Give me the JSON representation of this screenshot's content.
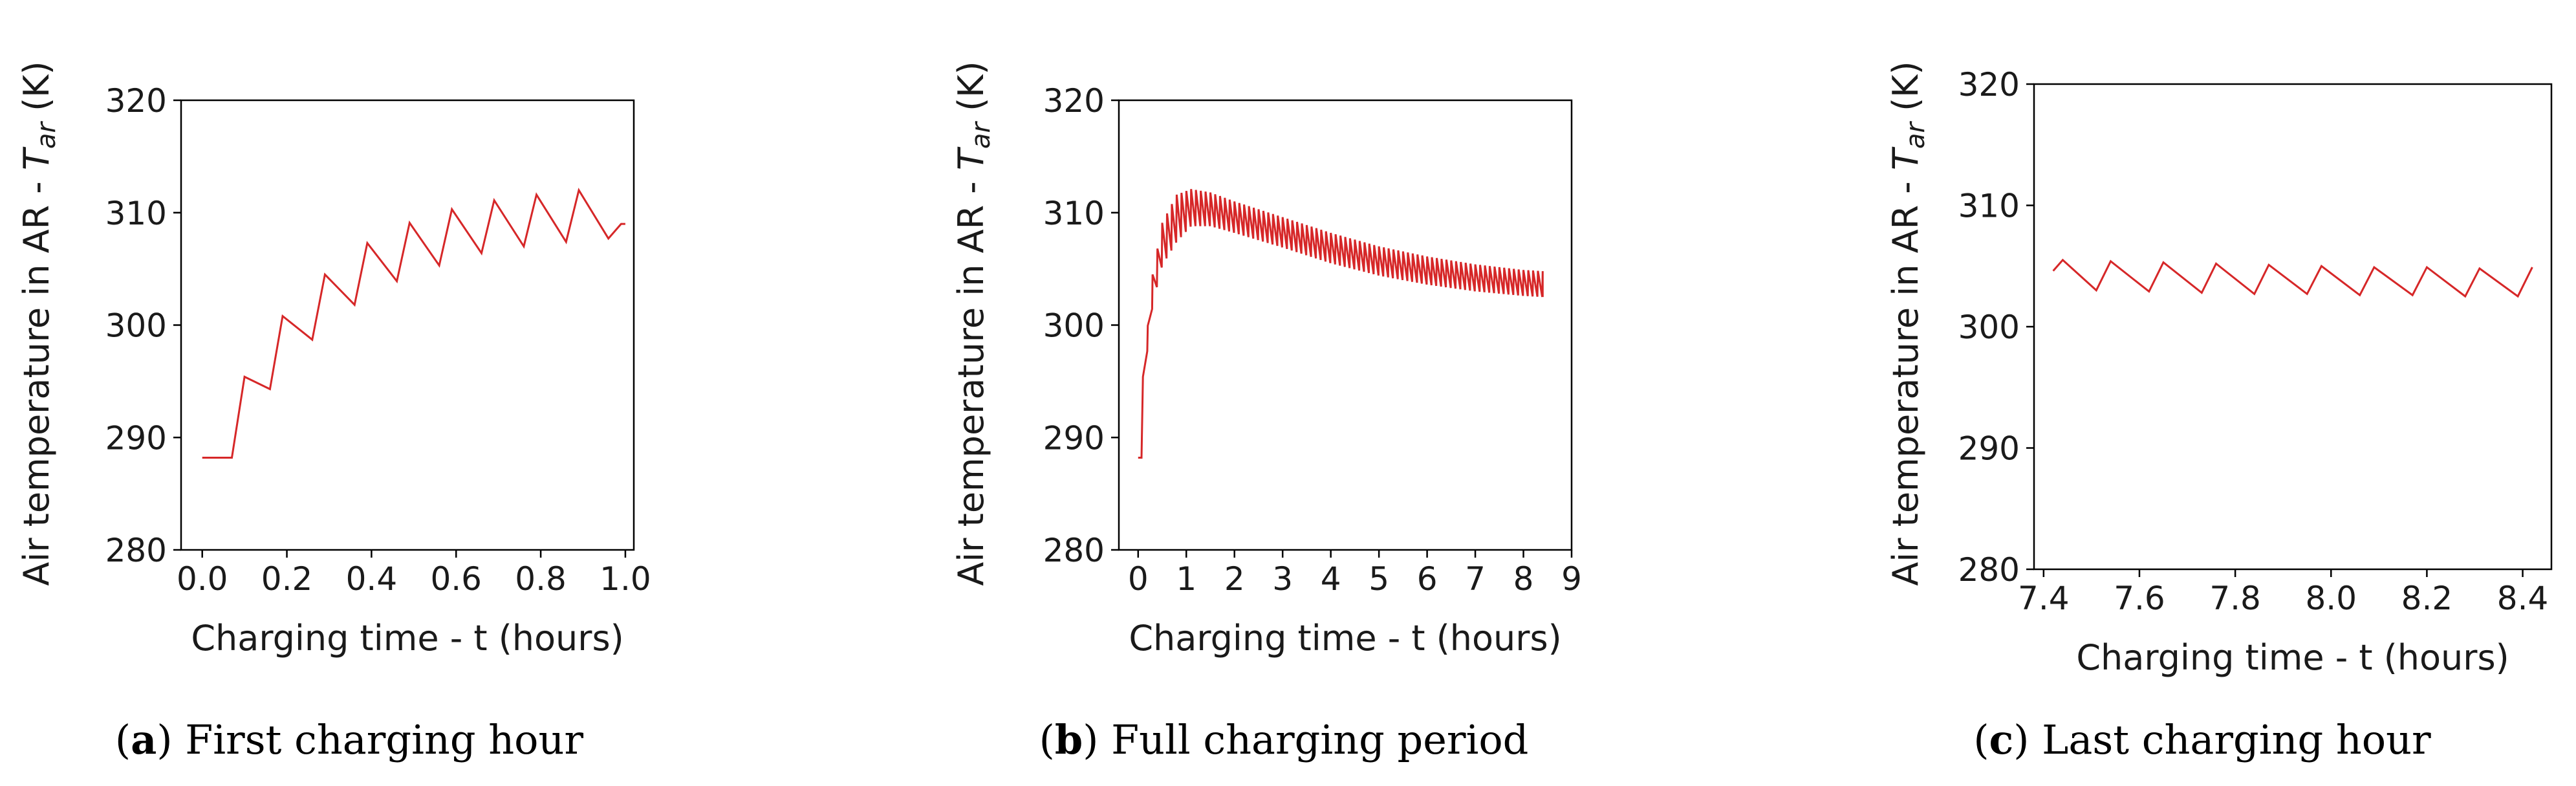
{
  "line_color": "#d62728",
  "chart_data": [
    {
      "type": "line",
      "caption_letter": "a",
      "caption_text": "First charging hour",
      "xlabel": "Charging time - t (hours)",
      "ylabel": "Air temperature in AR - T_ar (K)",
      "xlim": [
        -0.05,
        1.02
      ],
      "ylim": [
        280,
        320
      ],
      "xticks": [
        0.0,
        0.2,
        0.4,
        0.6,
        0.8,
        1.0
      ],
      "xticklabels": [
        "0.0",
        "0.2",
        "0.4",
        "0.6",
        "0.8",
        "1.0"
      ],
      "yticks": [
        280,
        290,
        300,
        310,
        320
      ],
      "yticklabels": [
        "280",
        "290",
        "300",
        "310",
        "320"
      ],
      "series": [
        {
          "x": [
            0.0,
            0.07,
            0.1,
            0.16,
            0.19,
            0.26,
            0.29,
            0.36,
            0.39,
            0.46,
            0.49,
            0.56,
            0.59,
            0.66,
            0.69,
            0.76,
            0.79,
            0.86,
            0.89,
            0.96,
            0.99,
            1.0
          ],
          "y": [
            288.2,
            288.2,
            295.4,
            294.3,
            300.8,
            298.7,
            304.5,
            301.8,
            307.3,
            303.9,
            309.1,
            305.3,
            310.3,
            306.4,
            311.1,
            307.0,
            311.6,
            307.4,
            312.0,
            307.7,
            309.0,
            309.0
          ]
        }
      ]
    },
    {
      "type": "line",
      "caption_letter": "b",
      "caption_text": "Full charging period",
      "xlabel": "Charging time - t (hours)",
      "ylabel": "Air temperature in AR - T_ar (K)",
      "xlim": [
        -0.4,
        9
      ],
      "ylim": [
        280,
        320
      ],
      "xticks": [
        0,
        1,
        2,
        3,
        4,
        5,
        6,
        7,
        8,
        9
      ],
      "xticklabels": [
        "0",
        "1",
        "2",
        "3",
        "4",
        "5",
        "6",
        "7",
        "8",
        "9"
      ],
      "yticks": [
        280,
        290,
        300,
        310,
        320
      ],
      "yticklabels": [
        "280",
        "290",
        "300",
        "310",
        "320"
      ],
      "oscillation_period_hours": 0.1,
      "upper_envelope": {
        "x": [
          0.0,
          0.1,
          0.3,
          0.5,
          0.8,
          1.1,
          1.5,
          2.0,
          3.0,
          4.0,
          5.0,
          6.0,
          7.0,
          8.0,
          8.4
        ],
        "y": [
          288.2,
          295.4,
          304.5,
          309.1,
          311.6,
          312.1,
          311.8,
          311.0,
          309.6,
          308.2,
          307.0,
          306.1,
          305.4,
          304.9,
          304.8
        ]
      },
      "lower_envelope": {
        "x": [
          0.0,
          0.1,
          0.3,
          0.5,
          0.8,
          1.1,
          1.5,
          2.0,
          3.0,
          4.0,
          5.0,
          6.0,
          7.0,
          8.0,
          8.4
        ],
        "y": [
          288.2,
          294.3,
          301.8,
          305.3,
          307.4,
          308.8,
          308.8,
          308.2,
          306.9,
          305.5,
          304.4,
          303.6,
          303.0,
          302.6,
          302.5
        ]
      }
    },
    {
      "type": "line",
      "caption_letter": "c",
      "caption_text": "Last charging hour",
      "xlabel": "Charging time - t (hours)",
      "ylabel": "Air temperature in AR - T_ar (K)",
      "xlim": [
        7.38,
        8.46
      ],
      "ylim": [
        280,
        320
      ],
      "xticks": [
        7.4,
        7.6,
        7.8,
        8.0,
        8.2,
        8.4
      ],
      "xticklabels": [
        "7.4",
        "7.6",
        "7.8",
        "8.0",
        "8.2",
        "8.4"
      ],
      "yticks": [
        280,
        290,
        300,
        310,
        320
      ],
      "yticklabels": [
        "280",
        "290",
        "300",
        "310",
        "320"
      ],
      "series": [
        {
          "x": [
            7.42,
            7.44,
            7.51,
            7.54,
            7.62,
            7.65,
            7.73,
            7.76,
            7.84,
            7.87,
            7.95,
            7.98,
            8.06,
            8.09,
            8.17,
            8.2,
            8.28,
            8.31,
            8.39,
            8.42
          ],
          "y": [
            304.6,
            305.5,
            303.0,
            305.4,
            302.9,
            305.3,
            302.8,
            305.2,
            302.7,
            305.1,
            302.7,
            305.0,
            302.6,
            304.9,
            302.6,
            304.9,
            302.5,
            304.8,
            302.5,
            304.9
          ]
        }
      ]
    }
  ]
}
